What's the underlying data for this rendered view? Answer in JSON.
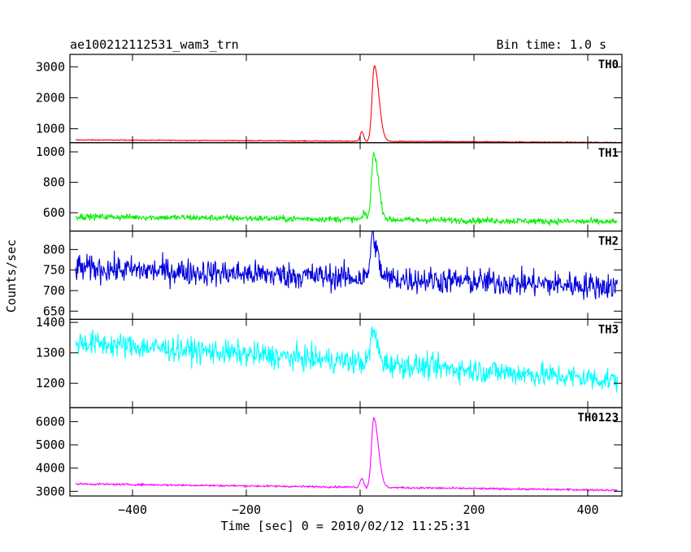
{
  "header": {
    "title": "ae100212112531_wam3_trn",
    "bin_time": "Bin time: 1.0 s"
  },
  "ylabel": "Counts/sec",
  "xlabel": "Time [sec] 0 = 2010/02/12 11:25:31",
  "chart_data": {
    "type": "line",
    "x_range": [
      -510,
      460
    ],
    "x_ticks": [
      -400,
      -200,
      0,
      200,
      400
    ],
    "x_tick_labels": [
      "−400",
      "−200",
      "0",
      "200",
      "400"
    ],
    "grid": false,
    "panels": [
      {
        "name": "TH0",
        "color": "#ff0000",
        "ylim": [
          550,
          3400
        ],
        "yticks": [
          1000,
          2000,
          3000
        ],
        "base_start": 640,
        "base_end": 560,
        "noise": 14,
        "peak": 3300,
        "peak_time": 25,
        "precursor": {
          "time": 3,
          "height": 320
        },
        "tail_level": 0
      },
      {
        "name": "TH1",
        "color": "#00ee00",
        "ylim": [
          480,
          1060
        ],
        "yticks": [
          600,
          800,
          1000
        ],
        "base_start": 575,
        "base_end": 540,
        "noise": 20,
        "peak": 1040,
        "peak_time": 24,
        "precursor": {
          "time": 8,
          "height": 40
        },
        "tail_level": 0
      },
      {
        "name": "TH2",
        "color": "#0000dd",
        "ylim": [
          630,
          845
        ],
        "yticks": [
          650,
          700,
          750,
          800
        ],
        "base_start": 755,
        "base_end": 710,
        "noise": 32,
        "peak": 845,
        "peak_time": 22,
        "precursor": {
          "time": 0,
          "height": 0
        },
        "tail_level": 0
      },
      {
        "name": "TH3",
        "color": "#00ffff",
        "ylim": [
          1120,
          1410
        ],
        "yticks": [
          1200,
          1300,
          1400
        ],
        "base_start": 1335,
        "base_end": 1210,
        "noise": 40,
        "peak": 1380,
        "peak_time": 22,
        "precursor": {
          "time": 0,
          "height": 0
        },
        "tail_level": 0
      },
      {
        "name": "TH0123",
        "color": "#ff00ff",
        "ylim": [
          2800,
          6600
        ],
        "yticks": [
          3000,
          4000,
          5000,
          6000
        ],
        "base_start": 3320,
        "base_end": 3050,
        "noise": 40,
        "peak": 6500,
        "peak_time": 24,
        "precursor": {
          "time": 3,
          "height": 400
        },
        "tail_level": 0
      }
    ]
  }
}
